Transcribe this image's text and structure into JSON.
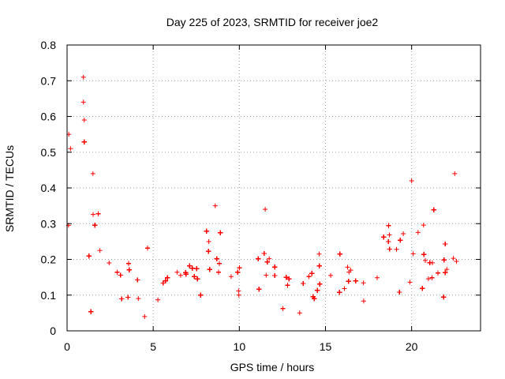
{
  "chart_data": {
    "type": "scatter",
    "title": "Day 225 of 2023, SRMTID for receiver joe2",
    "xlabel": "GPS time / hours",
    "ylabel": "SRMTID / TECUs",
    "xlim": [
      0,
      24
    ],
    "ylim": [
      0,
      0.8
    ],
    "xticks": [
      0,
      5,
      10,
      15,
      20
    ],
    "yticks": [
      0,
      0.1,
      0.2,
      0.3,
      0.4,
      0.5,
      0.6,
      0.7,
      0.8
    ],
    "ytick_labels": [
      "0",
      "0.1",
      "0.2",
      "0.3",
      "0.4",
      "0.5",
      "0.6",
      "0.7",
      "0.8"
    ],
    "grid": true,
    "marker": "+",
    "color": "#ff0000",
    "series_name": "SRMTID",
    "x_range_hours": [
      0,
      22.8
    ],
    "trend_profile": [
      {
        "x": 0.0,
        "y": 0.24
      },
      {
        "x": 1.0,
        "y": 0.25
      },
      {
        "x": 2.0,
        "y": 0.22
      },
      {
        "x": 3.0,
        "y": 0.14
      },
      {
        "x": 4.0,
        "y": 0.1
      },
      {
        "x": 5.0,
        "y": 0.13
      },
      {
        "x": 6.0,
        "y": 0.16
      },
      {
        "x": 7.0,
        "y": 0.14
      },
      {
        "x": 8.0,
        "y": 0.15
      },
      {
        "x": 8.6,
        "y": 0.22
      },
      {
        "x": 9.5,
        "y": 0.16
      },
      {
        "x": 10.0,
        "y": 0.12
      },
      {
        "x": 11.0,
        "y": 0.19
      },
      {
        "x": 12.0,
        "y": 0.13
      },
      {
        "x": 13.0,
        "y": 0.1
      },
      {
        "x": 14.0,
        "y": 0.12
      },
      {
        "x": 15.0,
        "y": 0.13
      },
      {
        "x": 16.0,
        "y": 0.12
      },
      {
        "x": 17.0,
        "y": 0.14
      },
      {
        "x": 18.0,
        "y": 0.15
      },
      {
        "x": 19.0,
        "y": 0.23
      },
      {
        "x": 19.5,
        "y": 0.27
      },
      {
        "x": 20.0,
        "y": 0.2
      },
      {
        "x": 21.0,
        "y": 0.19
      },
      {
        "x": 22.0,
        "y": 0.16
      },
      {
        "x": 22.5,
        "y": 0.23
      },
      {
        "x": 22.8,
        "y": 0.2
      }
    ],
    "notable_points": [
      {
        "x": 0.95,
        "y": 0.71
      },
      {
        "x": 0.95,
        "y": 0.64
      },
      {
        "x": 1.0,
        "y": 0.59
      },
      {
        "x": 0.1,
        "y": 0.55
      },
      {
        "x": 0.2,
        "y": 0.51
      },
      {
        "x": 1.5,
        "y": 0.44
      },
      {
        "x": 22.5,
        "y": 0.44
      },
      {
        "x": 20.0,
        "y": 0.42
      },
      {
        "x": 8.6,
        "y": 0.35
      },
      {
        "x": 11.5,
        "y": 0.34
      },
      {
        "x": 4.5,
        "y": 0.04
      },
      {
        "x": 13.5,
        "y": 0.05
      }
    ]
  }
}
